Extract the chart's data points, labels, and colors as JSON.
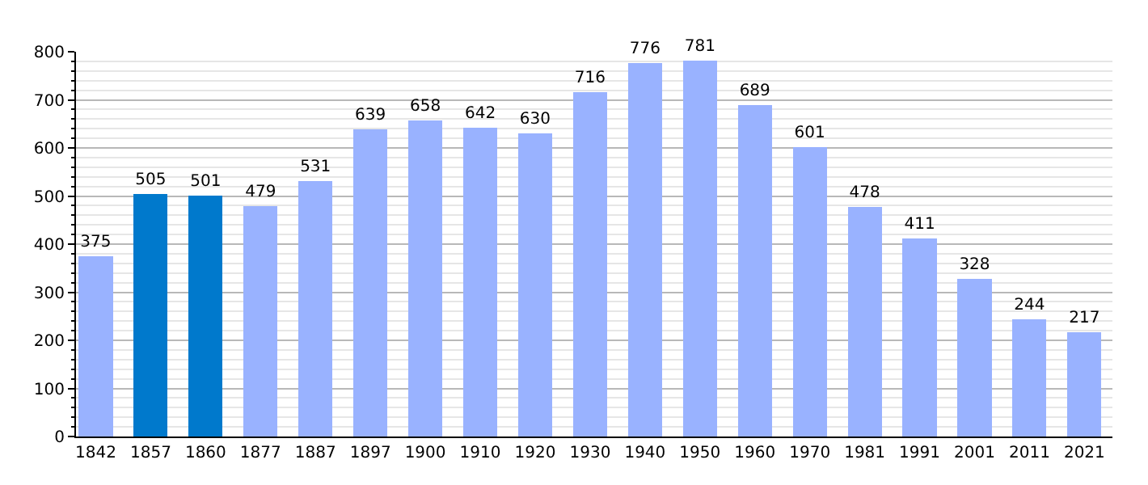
{
  "chart_data": {
    "type": "bar",
    "categories": [
      "1842",
      "1857",
      "1860",
      "1877",
      "1887",
      "1897",
      "1900",
      "1910",
      "1920",
      "1930",
      "1940",
      "1950",
      "1960",
      "1970",
      "1981",
      "1991",
      "2001",
      "2011",
      "2021"
    ],
    "values": [
      375,
      505,
      501,
      479,
      531,
      639,
      658,
      642,
      630,
      716,
      776,
      781,
      689,
      601,
      478,
      411,
      328,
      244,
      217
    ],
    "colors": [
      "#99b2ff",
      "#0079cc",
      "#0079cc",
      "#99b2ff",
      "#99b2ff",
      "#99b2ff",
      "#99b2ff",
      "#99b2ff",
      "#99b2ff",
      "#99b2ff",
      "#99b2ff",
      "#99b2ff",
      "#99b2ff",
      "#99b2ff",
      "#99b2ff",
      "#99b2ff",
      "#99b2ff",
      "#99b2ff",
      "#99b2ff"
    ],
    "data_labels": true,
    "ylim": [
      0,
      800
    ],
    "yticks": [
      0,
      100,
      200,
      300,
      400,
      500,
      600,
      700,
      800
    ],
    "grid": true
  }
}
